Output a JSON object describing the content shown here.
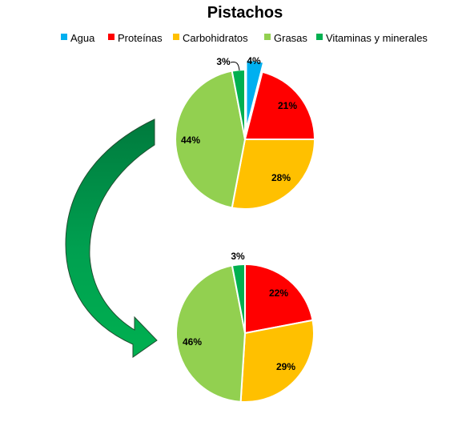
{
  "chart_data": {
    "type": "pie",
    "title": "Pistachos",
    "legend": {
      "position": "top",
      "entries": [
        {
          "label": "Agua",
          "color": "#00B0F0"
        },
        {
          "label": "Proteínas",
          "color": "#FF0000"
        },
        {
          "label": "Carbohidratos",
          "color": "#FFC000"
        },
        {
          "label": "Grasas",
          "color": "#92D050"
        },
        {
          "label": "Vitaminas y minerales",
          "color": "#00B050"
        }
      ]
    },
    "charts": [
      {
        "categories": [
          "Agua",
          "Proteínas",
          "Carbohidratos",
          "Grasas",
          "Vitaminas y minerales"
        ],
        "values": [
          4,
          21,
          28,
          44,
          3
        ],
        "labels": [
          "4%",
          "21%",
          "28%",
          "44%",
          "3%"
        ],
        "exploded": "Agua"
      },
      {
        "categories": [
          "Proteínas",
          "Carbohidratos",
          "Grasas",
          "Vitaminas y minerales"
        ],
        "values": [
          22,
          29,
          46,
          3
        ],
        "labels": [
          "22%",
          "29%",
          "46%",
          "3%"
        ]
      }
    ]
  }
}
